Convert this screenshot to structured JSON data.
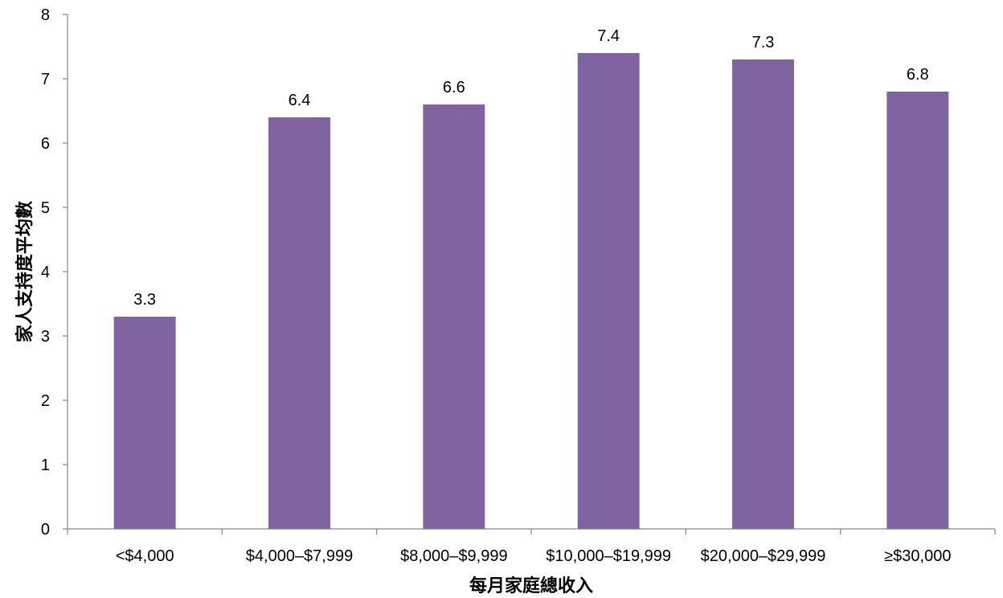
{
  "chart_data": {
    "type": "bar",
    "categories": [
      "<$4,000",
      "$4,000–$7,999",
      "$8,000–$9,999",
      "$10,000–$19,999",
      "$20,000–$29,999",
      "≥$30,000"
    ],
    "values": [
      3.3,
      6.4,
      6.6,
      7.4,
      7.3,
      6.8
    ],
    "data_labels": [
      "3.3",
      "6.4",
      "6.6",
      "7.4",
      "7.3",
      "6.8"
    ],
    "xlabel": "每月家庭總收入",
    "ylabel": "家人支持度平均數",
    "ylim": [
      0,
      8
    ],
    "yticks": [
      0,
      1,
      2,
      3,
      4,
      5,
      6,
      7,
      8
    ],
    "grid": false,
    "legend": "none",
    "bar_color": "#8064a2",
    "axis_color": "#868686"
  }
}
